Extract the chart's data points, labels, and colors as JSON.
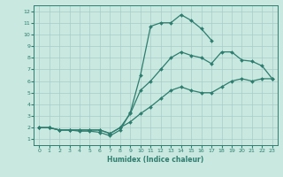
{
  "xlabel": "Humidex (Indice chaleur)",
  "bg_color": "#c8e8e0",
  "line_color": "#2e7d6e",
  "grid_color": "#a8ccc8",
  "xlim": [
    -0.5,
    23.5
  ],
  "ylim": [
    0.5,
    12.5
  ],
  "xticks": [
    0,
    1,
    2,
    3,
    4,
    5,
    6,
    7,
    8,
    9,
    10,
    11,
    12,
    13,
    14,
    15,
    16,
    17,
    18,
    19,
    20,
    21,
    22,
    23
  ],
  "yticks": [
    1,
    2,
    3,
    4,
    5,
    6,
    7,
    8,
    9,
    10,
    11,
    12
  ],
  "line1_x": [
    0,
    1,
    2,
    3,
    4,
    5,
    6,
    7,
    8,
    9,
    10,
    11,
    12,
    13,
    14,
    15,
    16,
    17,
    18,
    19,
    20,
    22,
    23
  ],
  "line1_y": [
    2.0,
    2.0,
    1.8,
    1.8,
    1.7,
    1.7,
    1.6,
    1.3,
    1.8,
    3.3,
    6.5,
    10.7,
    11.0,
    11.0,
    11.7,
    11.2,
    10.5,
    9.5,
    null,
    null,
    null,
    null,
    null
  ],
  "line2_x": [
    0,
    1,
    2,
    3,
    4,
    5,
    6,
    7,
    8,
    9,
    10,
    11,
    12,
    13,
    14,
    15,
    16,
    17,
    18,
    19,
    20,
    21,
    22,
    23
  ],
  "line2_y": [
    2.0,
    2.0,
    1.8,
    1.8,
    1.8,
    1.8,
    1.8,
    1.5,
    2.0,
    3.2,
    5.2,
    6.0,
    7.0,
    8.0,
    8.5,
    8.2,
    8.0,
    7.5,
    8.5,
    8.5,
    7.8,
    7.7,
    7.3,
    6.2
  ],
  "line3_x": [
    0,
    1,
    2,
    3,
    4,
    5,
    6,
    7,
    8,
    9,
    10,
    11,
    12,
    13,
    14,
    15,
    16,
    17,
    18,
    19,
    20,
    21,
    22,
    23
  ],
  "line3_y": [
    2.0,
    2.0,
    1.8,
    1.8,
    1.8,
    1.8,
    1.8,
    1.5,
    2.0,
    2.5,
    3.2,
    3.8,
    4.5,
    5.2,
    5.5,
    5.2,
    5.0,
    5.0,
    5.5,
    6.0,
    6.2,
    6.0,
    6.2,
    6.2
  ]
}
